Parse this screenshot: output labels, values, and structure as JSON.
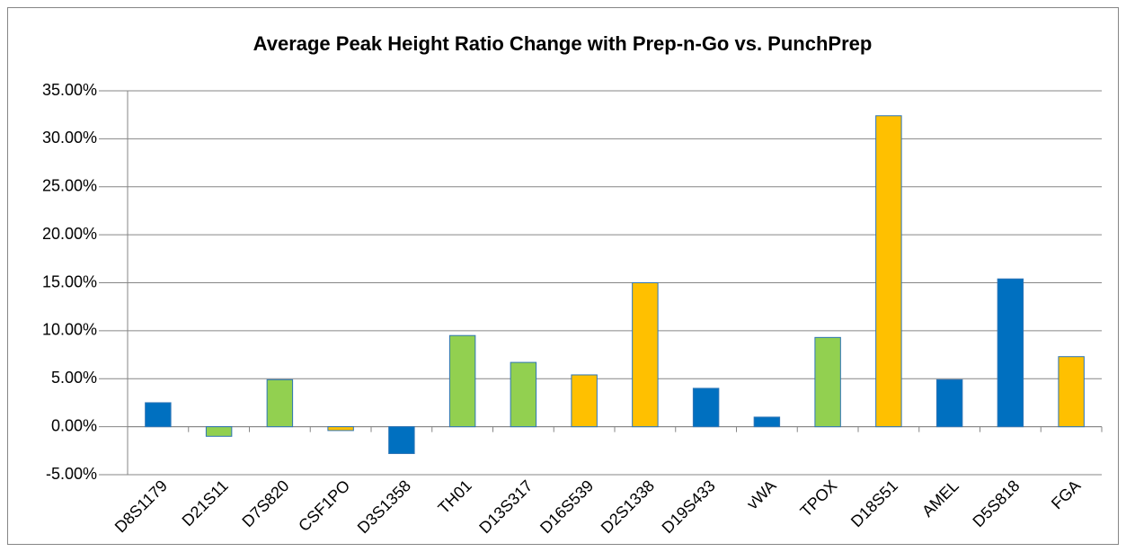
{
  "chart_data": {
    "type": "bar",
    "title": "Average Peak Height Ratio Change with Prep-n-Go vs. PunchPrep",
    "categories": [
      "D8S1179",
      "D21S11",
      "D7S820",
      "CSF1PO",
      "D3S1358",
      "TH01",
      "D13S317",
      "D16S539",
      "D2S1338",
      "D19S433",
      "vWA",
      "TPOX",
      "D18S51",
      "AMEL",
      "D5S818",
      "FGA"
    ],
    "values": [
      2.5,
      -1.0,
      4.9,
      -0.4,
      -2.8,
      9.5,
      6.7,
      5.4,
      15.0,
      4.0,
      1.0,
      9.3,
      32.4,
      4.9,
      15.4,
      7.3
    ],
    "colors": [
      "#0070c0",
      "#92d050",
      "#92d050",
      "#ffc000",
      "#0070c0",
      "#92d050",
      "#92d050",
      "#ffc000",
      "#ffc000",
      "#0070c0",
      "#0070c0",
      "#92d050",
      "#ffc000",
      "#0070c0",
      "#0070c0",
      "#ffc000"
    ],
    "ylim": [
      -5,
      35
    ],
    "yticks": [
      {
        "value": -5,
        "label": "-5.00%"
      },
      {
        "value": 0,
        "label": "0.00%"
      },
      {
        "value": 5,
        "label": "5.00%"
      },
      {
        "value": 10,
        "label": "10.00%"
      },
      {
        "value": 15,
        "label": "15.00%"
      },
      {
        "value": 20,
        "label": "20.00%"
      },
      {
        "value": 25,
        "label": "25.00%"
      },
      {
        "value": 30,
        "label": "30.00%"
      },
      {
        "value": 35,
        "label": "35.00%"
      }
    ],
    "grid": true
  }
}
